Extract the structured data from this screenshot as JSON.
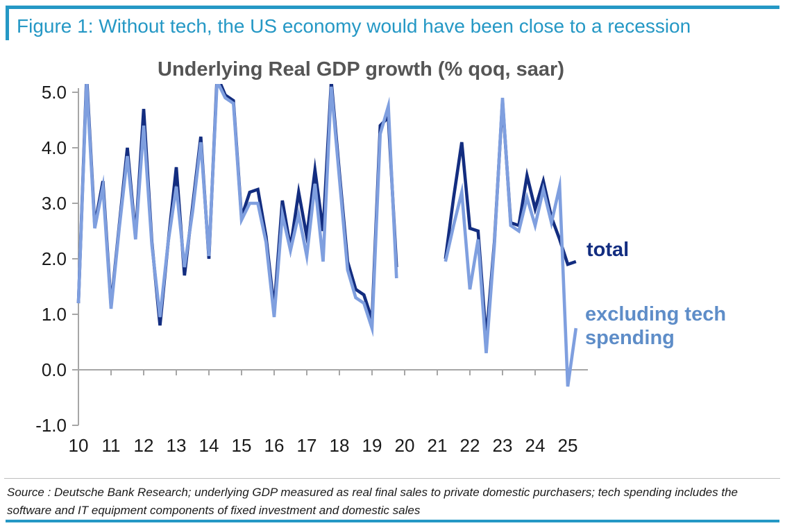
{
  "figure": {
    "title": "Figure 1: Without tech, the US economy would have been close to a recession"
  },
  "chart_data": {
    "type": "line",
    "title": "Underlying Real GDP growth (% qoq, saar)",
    "xlabel": "",
    "ylabel": "",
    "ylim": [
      -1.0,
      5.0
    ],
    "grid": false,
    "legend_position": "inline-right",
    "x_unit": "year (quarterly data, gap 2020Q1–2021Q1)",
    "x_tick_labels": [
      "10",
      "11",
      "12",
      "13",
      "14",
      "15",
      "16",
      "17",
      "18",
      "19",
      "20",
      "21",
      "22",
      "23",
      "24",
      "25"
    ],
    "y_tick_labels": [
      "5.0",
      "4.0",
      "3.0",
      "2.0",
      "1.0",
      "0.0",
      "-1.0"
    ],
    "axis_color": "#a6a6a6",
    "series": [
      {
        "name": "total",
        "color": "#132d80",
        "segments": [
          {
            "start": "2010Q1",
            "values": [
              1.2,
              5.3,
              2.6,
              3.4,
              1.15,
              2.6,
              4.0,
              2.4,
              4.7,
              2.3,
              0.8,
              2.3,
              3.65,
              1.7,
              2.95,
              4.2,
              2.0,
              5.3,
              4.95,
              4.85,
              2.75,
              3.2,
              3.25,
              2.4,
              1.1,
              3.05,
              2.2,
              3.2,
              2.4,
              3.6,
              2.5,
              5.2,
              3.55,
              1.95,
              1.45,
              1.35,
              0.9,
              4.4,
              4.55,
              1.85
            ]
          },
          {
            "start": "2021Q2",
            "values": [
              2.0,
              3.1,
              4.1,
              2.55,
              2.5,
              0.55,
              2.3,
              4.85,
              2.65,
              2.6,
              3.5,
              2.9,
              3.4,
              2.75,
              2.35,
              1.9,
              1.95
            ]
          }
        ]
      },
      {
        "name": "excluding tech spending",
        "color": "#7f9fdf",
        "segments": [
          {
            "start": "2010Q1",
            "values": [
              1.2,
              5.2,
              2.55,
              3.3,
              1.1,
              2.55,
              3.85,
              2.35,
              4.4,
              2.25,
              0.95,
              2.3,
              3.3,
              1.85,
              2.85,
              4.1,
              2.05,
              5.2,
              4.9,
              4.8,
              2.7,
              3.0,
              3.0,
              2.3,
              0.95,
              2.8,
              2.15,
              2.8,
              2.05,
              3.35,
              1.95,
              5.1,
              3.45,
              1.8,
              1.3,
              1.2,
              0.75,
              4.25,
              4.75,
              1.65
            ]
          },
          {
            "start": "2021Q2",
            "values": [
              1.95,
              2.6,
              3.2,
              1.45,
              2.35,
              0.3,
              2.25,
              4.9,
              2.6,
              2.5,
              3.1,
              2.6,
              3.25,
              2.65,
              3.3,
              -0.3,
              0.75
            ]
          }
        ]
      }
    ],
    "annotations": [
      {
        "text": "total",
        "color": "#132d80"
      },
      {
        "text": "excluding tech spending",
        "color": "#5e8dc8"
      }
    ],
    "values_note": "values above 5.0 are clipped at the top of the plot"
  },
  "footer": {
    "source_line1": "Source : Deutsche Bank Research; underlying GDP measured as real final sales to private domestic purchasers; tech spending includes the",
    "source_line2": "software and IT equipment components of fixed investment and domestic sales"
  },
  "colors": {
    "accent_blue": "#2598c5",
    "total_line": "#132d80",
    "ex_tech_line": "#7f9fdf",
    "ex_tech_label": "#5e8dc8",
    "chart_title": "#555555",
    "axis": "#a6a6a6"
  }
}
